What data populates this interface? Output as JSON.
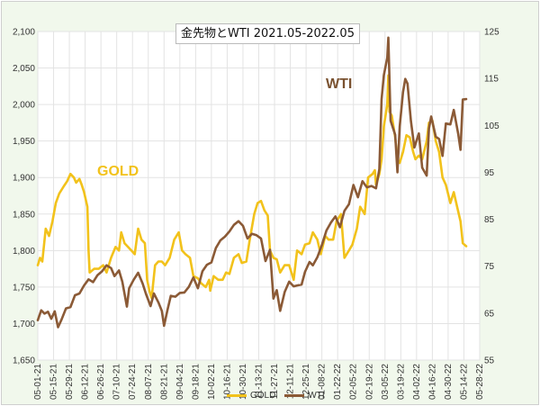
{
  "chart_data": {
    "type": "line",
    "title": "金先物とWTI 2021.05-2022.05",
    "annotations": {
      "wti": "WTI",
      "gold": "GOLD"
    },
    "x_ticks": [
      "05-01-21",
      "05-15-21",
      "05-29-21",
      "06-12-21",
      "06-26-21",
      "07-10-21",
      "07-24-21",
      "08-07-21",
      "08-21-21",
      "09-04-21",
      "09-18-21",
      "10-02-21",
      "10-16-21",
      "10-30-21",
      "11-13-21",
      "11-27-21",
      "12-11-21",
      "12-25-21",
      "01-08-22",
      "01-22-22",
      "02-05-22",
      "02-19-22",
      "03-05-22",
      "03-19-22",
      "04-02-22",
      "04-16-22",
      "04-30-22",
      "05-14-22",
      "05-28-22"
    ],
    "y_left": {
      "min": 1650,
      "max": 2100,
      "ticks": [
        "1,650",
        "1,700",
        "1,750",
        "1,800",
        "1,850",
        "1,900",
        "1,950",
        "2,000",
        "2,050",
        "2,100"
      ]
    },
    "y_right": {
      "min": 55,
      "max": 125,
      "ticks": [
        "55",
        "65",
        "75",
        "85",
        "95",
        "105",
        "115",
        "125"
      ]
    },
    "grid": true,
    "legend_position": "bottom",
    "series": [
      {
        "name": "GOLD",
        "axis": "left",
        "color": "#f2c21b",
        "points": [
          [
            "05-01-21",
            1780
          ],
          [
            "05-03-21",
            1790
          ],
          [
            "05-05-21",
            1785
          ],
          [
            "05-08-21",
            1830
          ],
          [
            "05-11-21",
            1820
          ],
          [
            "05-14-21",
            1840
          ],
          [
            "05-17-21",
            1865
          ],
          [
            "05-20-21",
            1878
          ],
          [
            "05-24-21",
            1888
          ],
          [
            "05-27-21",
            1895
          ],
          [
            "05-30-21",
            1905
          ],
          [
            "06-02-21",
            1900
          ],
          [
            "06-04-21",
            1893
          ],
          [
            "06-07-21",
            1898
          ],
          [
            "06-09-21",
            1890
          ],
          [
            "06-11-21",
            1880
          ],
          [
            "06-14-21",
            1860
          ],
          [
            "06-15-21",
            1800
          ],
          [
            "06-16-21",
            1770
          ],
          [
            "06-20-21",
            1775
          ],
          [
            "06-24-21",
            1775
          ],
          [
            "06-28-21",
            1780
          ],
          [
            "07-01-21",
            1770
          ],
          [
            "07-05-21",
            1790
          ],
          [
            "07-09-21",
            1805
          ],
          [
            "07-12-21",
            1800
          ],
          [
            "07-14-21",
            1825
          ],
          [
            "07-17-21",
            1810
          ],
          [
            "07-20-21",
            1805
          ],
          [
            "07-23-21",
            1800
          ],
          [
            "07-26-21",
            1795
          ],
          [
            "07-29-21",
            1830
          ],
          [
            "08-01-21",
            1815
          ],
          [
            "08-04-21",
            1810
          ],
          [
            "08-06-21",
            1760
          ],
          [
            "08-08-21",
            1745
          ],
          [
            "08-10-21",
            1735
          ],
          [
            "08-13-21",
            1780
          ],
          [
            "08-16-21",
            1785
          ],
          [
            "08-19-21",
            1785
          ],
          [
            "08-22-21",
            1780
          ],
          [
            "08-26-21",
            1790
          ],
          [
            "08-30-21",
            1815
          ],
          [
            "09-03-21",
            1825
          ],
          [
            "09-06-21",
            1800
          ],
          [
            "09-09-21",
            1795
          ],
          [
            "09-13-21",
            1790
          ],
          [
            "09-16-21",
            1765
          ],
          [
            "09-20-21",
            1762
          ],
          [
            "09-23-21",
            1755
          ],
          [
            "09-27-21",
            1750
          ],
          [
            "09-30-21",
            1760
          ],
          [
            "10-01-21",
            1745
          ],
          [
            "10-04-21",
            1765
          ],
          [
            "10-08-21",
            1760
          ],
          [
            "10-12-21",
            1760
          ],
          [
            "10-15-21",
            1770
          ],
          [
            "10-18-21",
            1768
          ],
          [
            "10-22-21",
            1790
          ],
          [
            "10-26-21",
            1795
          ],
          [
            "10-29-21",
            1783
          ],
          [
            "11-02-21",
            1785
          ],
          [
            "11-05-21",
            1815
          ],
          [
            "11-09-21",
            1850
          ],
          [
            "11-12-21",
            1865
          ],
          [
            "11-15-21",
            1868
          ],
          [
            "11-18-21",
            1855
          ],
          [
            "11-21-21",
            1848
          ],
          [
            "11-23-21",
            1800
          ],
          [
            "11-26-21",
            1790
          ],
          [
            "11-29-21",
            1788
          ],
          [
            "12-02-21",
            1770
          ],
          [
            "12-06-21",
            1780
          ],
          [
            "12-10-21",
            1780
          ],
          [
            "12-14-21",
            1760
          ],
          [
            "12-17-21",
            1800
          ],
          [
            "12-21-21",
            1795
          ],
          [
            "12-24-21",
            1808
          ],
          [
            "12-28-21",
            1810
          ],
          [
            "12-31-21",
            1825
          ],
          [
            "01-04-22",
            1815
          ],
          [
            "01-07-22",
            1795
          ],
          [
            "01-11-22",
            1820
          ],
          [
            "01-14-22",
            1815
          ],
          [
            "01-18-22",
            1815
          ],
          [
            "01-21-22",
            1840
          ],
          [
            "01-25-22",
            1850
          ],
          [
            "01-28-22",
            1790
          ],
          [
            "02-01-22",
            1800
          ],
          [
            "02-04-22",
            1808
          ],
          [
            "02-08-22",
            1830
          ],
          [
            "02-11-22",
            1860
          ],
          [
            "02-15-22",
            1850
          ],
          [
            "02-18-22",
            1900
          ],
          [
            "02-22-22",
            1905
          ],
          [
            "02-24-22",
            1910
          ],
          [
            "02-25-22",
            1890
          ],
          [
            "02-28-22",
            1905
          ],
          [
            "03-02-22",
            1925
          ],
          [
            "03-04-22",
            1970
          ],
          [
            "03-07-22",
            2000
          ],
          [
            "03-08-22",
            2040
          ],
          [
            "03-09-22",
            1990
          ],
          [
            "03-11-22",
            1985
          ],
          [
            "03-14-22",
            1955
          ],
          [
            "03-16-22",
            1925
          ],
          [
            "03-18-22",
            1920
          ],
          [
            "03-21-22",
            1935
          ],
          [
            "03-24-22",
            1958
          ],
          [
            "03-27-22",
            1955
          ],
          [
            "03-30-22",
            1935
          ],
          [
            "04-01-22",
            1925
          ],
          [
            "04-04-22",
            1930
          ],
          [
            "04-07-22",
            1925
          ],
          [
            "04-11-22",
            1950
          ],
          [
            "04-13-22",
            1975
          ],
          [
            "04-16-22",
            1978
          ],
          [
            "04-19-22",
            1950
          ],
          [
            "04-22-22",
            1935
          ],
          [
            "04-25-22",
            1900
          ],
          [
            "04-28-22",
            1890
          ],
          [
            "05-02-22",
            1865
          ],
          [
            "05-05-22",
            1880
          ],
          [
            "05-08-22",
            1860
          ],
          [
            "05-11-22",
            1840
          ],
          [
            "05-13-22",
            1810
          ],
          [
            "05-16-22",
            1806
          ]
        ]
      },
      {
        "name": "WTI",
        "axis": "right",
        "color": "#8b5a36",
        "points": [
          [
            "05-01-21",
            63.5
          ],
          [
            "05-04-21",
            65.6
          ],
          [
            "05-07-21",
            64.9
          ],
          [
            "05-10-21",
            65.3
          ],
          [
            "05-13-21",
            63.8
          ],
          [
            "05-16-21",
            65.4
          ],
          [
            "05-19-21",
            62.0
          ],
          [
            "05-22-21",
            63.6
          ],
          [
            "05-26-21",
            66.0
          ],
          [
            "05-30-21",
            66.3
          ],
          [
            "06-03-21",
            68.8
          ],
          [
            "06-07-21",
            69.2
          ],
          [
            "06-11-21",
            70.9
          ],
          [
            "06-15-21",
            72.2
          ],
          [
            "06-19-21",
            71.6
          ],
          [
            "06-23-21",
            73.1
          ],
          [
            "06-27-21",
            73.9
          ],
          [
            "07-01-21",
            75.2
          ],
          [
            "07-05-21",
            74.6
          ],
          [
            "07-08-21",
            72.9
          ],
          [
            "07-12-21",
            74.1
          ],
          [
            "07-15-21",
            71.7
          ],
          [
            "07-19-21",
            66.4
          ],
          [
            "07-21-21",
            70.3
          ],
          [
            "07-25-21",
            72.1
          ],
          [
            "07-29-21",
            73.6
          ],
          [
            "08-02-21",
            71.3
          ],
          [
            "08-05-21",
            69.1
          ],
          [
            "08-09-21",
            66.5
          ],
          [
            "08-12-21",
            69.2
          ],
          [
            "08-16-21",
            67.3
          ],
          [
            "08-19-21",
            65.5
          ],
          [
            "08-21-21",
            62.3
          ],
          [
            "08-24-21",
            65.6
          ],
          [
            "08-27-21",
            68.7
          ],
          [
            "08-31-21",
            68.5
          ],
          [
            "09-04-21",
            69.3
          ],
          [
            "09-08-21",
            69.4
          ],
          [
            "09-12-21",
            70.6
          ],
          [
            "09-16-21",
            72.6
          ],
          [
            "09-20-21",
            70.3
          ],
          [
            "09-24-21",
            73.9
          ],
          [
            "09-28-21",
            75.3
          ],
          [
            "10-02-21",
            75.8
          ],
          [
            "10-06-21",
            78.9
          ],
          [
            "10-10-21",
            80.5
          ],
          [
            "10-14-21",
            81.3
          ],
          [
            "10-18-21",
            82.4
          ],
          [
            "10-22-21",
            83.8
          ],
          [
            "10-26-21",
            84.6
          ],
          [
            "10-30-21",
            83.6
          ],
          [
            "11-03-21",
            80.9
          ],
          [
            "11-07-21",
            81.9
          ],
          [
            "11-11-21",
            81.6
          ],
          [
            "11-15-21",
            80.9
          ],
          [
            "11-19-21",
            76.1
          ],
          [
            "11-23-21",
            78.5
          ],
          [
            "11-26-21",
            68.1
          ],
          [
            "11-29-21",
            69.9
          ],
          [
            "12-02-21",
            65.5
          ],
          [
            "12-06-21",
            69.5
          ],
          [
            "12-10-21",
            71.7
          ],
          [
            "12-14-21",
            70.7
          ],
          [
            "12-17-21",
            70.9
          ],
          [
            "12-21-21",
            71.1
          ],
          [
            "12-24-21",
            73.8
          ],
          [
            "12-28-21",
            75.9
          ],
          [
            "12-31-21",
            75.2
          ],
          [
            "01-04-22",
            76.9
          ],
          [
            "01-08-22",
            79.5
          ],
          [
            "01-12-22",
            82.6
          ],
          [
            "01-16-22",
            84.3
          ],
          [
            "01-20-22",
            85.6
          ],
          [
            "01-24-22",
            83.3
          ],
          [
            "01-28-22",
            86.8
          ],
          [
            "02-01-22",
            88.2
          ],
          [
            "02-05-22",
            92.3
          ],
          [
            "02-09-22",
            89.7
          ],
          [
            "02-13-22",
            93.1
          ],
          [
            "02-17-22",
            91.8
          ],
          [
            "02-21-22",
            92.1
          ],
          [
            "02-25-22",
            91.6
          ],
          [
            "02-28-22",
            95.7
          ],
          [
            "03-02-22",
            110.6
          ],
          [
            "03-04-22",
            115.7
          ],
          [
            "03-07-22",
            119.4
          ],
          [
            "03-08-22",
            123.7
          ],
          [
            "03-10-22",
            106.0
          ],
          [
            "03-14-22",
            103.0
          ],
          [
            "03-16-22",
            95.0
          ],
          [
            "03-18-22",
            104.7
          ],
          [
            "03-21-22",
            112.1
          ],
          [
            "03-23-22",
            114.9
          ],
          [
            "03-25-22",
            113.9
          ],
          [
            "03-28-22",
            105.9
          ],
          [
            "03-31-22",
            100.3
          ],
          [
            "04-04-22",
            103.3
          ],
          [
            "04-07-22",
            96.0
          ],
          [
            "04-11-22",
            94.3
          ],
          [
            "04-13-22",
            104.3
          ],
          [
            "04-15-22",
            106.9
          ],
          [
            "04-19-22",
            102.6
          ],
          [
            "04-22-22",
            102.1
          ],
          [
            "04-25-22",
            98.5
          ],
          [
            "04-28-22",
            105.4
          ],
          [
            "05-02-22",
            105.2
          ],
          [
            "05-05-22",
            108.3
          ],
          [
            "05-09-22",
            103.1
          ],
          [
            "05-11-22",
            99.8
          ],
          [
            "05-13-22",
            110.5
          ],
          [
            "05-16-22",
            110.6
          ]
        ]
      }
    ]
  }
}
